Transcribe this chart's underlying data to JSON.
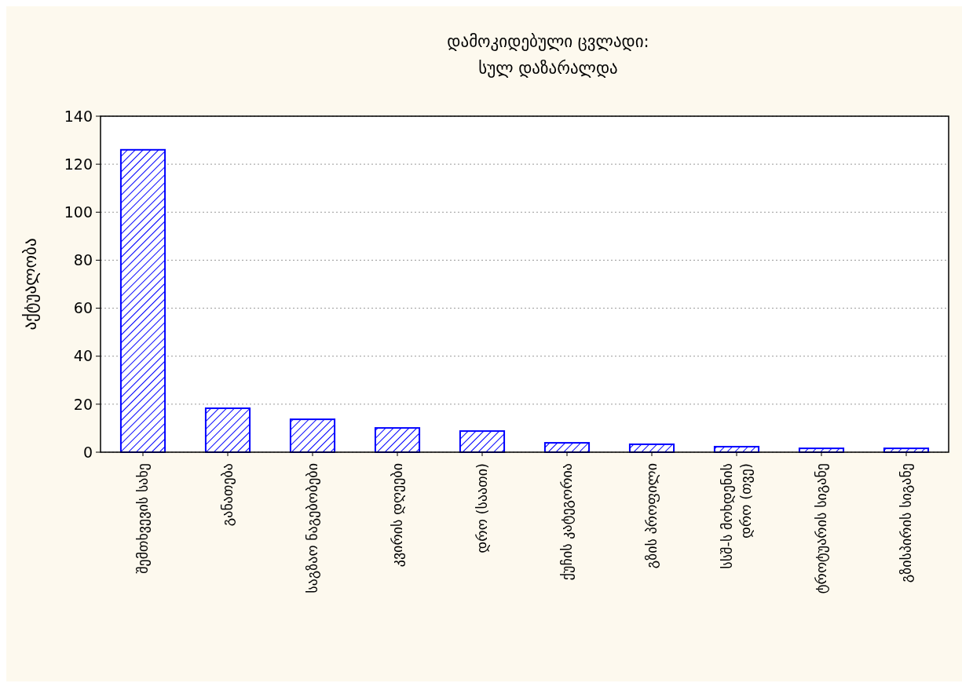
{
  "chart_data": {
    "type": "bar",
    "title": "დამოკიდებული ცვლადი:\nსულ დაზარალდა",
    "ylabel": "აქტუალობა",
    "categories": [
      "შემთხვევის სახე",
      "განათება",
      "საგზაო ნაგებობები",
      "კვირის დღეები",
      "დრო (საათი)",
      "ქუჩის კატეგორია",
      "გზის პროფილი",
      "სსშ-ს მოხდენის დრო (თვე)",
      "ტროტუარის სიგანე",
      "გზისპირის სიგანე"
    ],
    "values": [
      126,
      18.3,
      13.7,
      10.1,
      8.8,
      3.9,
      3.3,
      2.3,
      1.6,
      1.6
    ],
    "color": "#0000ff",
    "ylim": [
      0,
      140
    ],
    "yticks": [
      0,
      20,
      40,
      60,
      80,
      100,
      120,
      140
    ],
    "grid": "y"
  }
}
